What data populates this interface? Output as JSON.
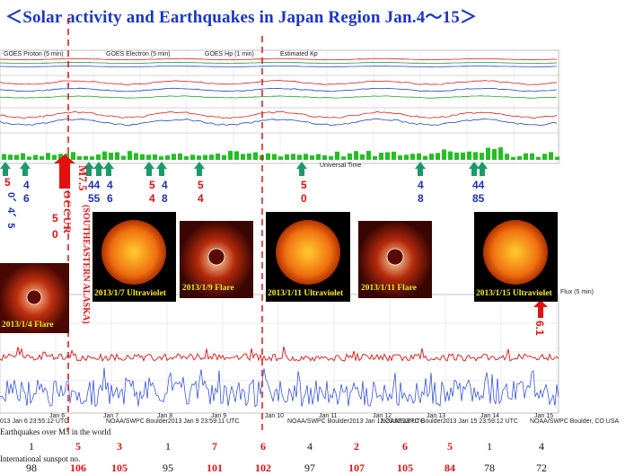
{
  "title": "＜Solar activity and Earthquakes  in Japan Region Jan.4～15＞",
  "colors": {
    "title": "#1a35c8",
    "green_arrow": "#1a9a6a",
    "red": "#e41010",
    "blue_num": "#2030c0"
  },
  "top_panel_labels": [
    "GOES Proton (5 min)",
    "GOES Electron (5 min)",
    "GOES Hp (1 min)",
    "Estimated Kp",
    "Universal Time"
  ],
  "big_event": {
    "magnitude": "M7.5",
    "place": "(SOUTHEASTERN ALASKA)",
    "note": "OCCUR"
  },
  "earthquake_markers": [
    {
      "mag": "5",
      "extra": "0、4、5"
    },
    {
      "mag": "4",
      "extra": "6"
    },
    {
      "mag": "5",
      "extra": "0"
    },
    {
      "mag": "44",
      "extra": "55"
    },
    {
      "mag": "4",
      "extra": "6"
    },
    {
      "mag": "5",
      "extra": "4"
    },
    {
      "mag": "4",
      "extra": "8"
    },
    {
      "mag": "5",
      "extra": "4"
    },
    {
      "mag": "5",
      "extra": "0"
    },
    {
      "mag": "4",
      "extra": "8"
    },
    {
      "mag": "44",
      "extra": "85"
    }
  ],
  "images": [
    {
      "caption": "2013/1/4 Flare",
      "kind": "flare"
    },
    {
      "caption": "2013/1/7 Ultraviolet",
      "kind": "sun"
    },
    {
      "caption": "2013/1/9 Flare",
      "kind": "flare"
    },
    {
      "caption": "2013/1/11 Ultraviolet",
      "kind": "sun"
    },
    {
      "caption": "2013/1/11 Flare",
      "kind": "flare"
    },
    {
      "caption": "2013/1/15 Ultraviolet",
      "kind": "sun"
    }
  ],
  "red_arrow_right": "6.1",
  "bottom_panel": {
    "flux_label": "Flux (5 min)",
    "axis_days": [
      "Jan 6",
      "Jan 7",
      "Jan 8",
      "Jan 9",
      "Jan 10",
      "Jan 11",
      "Jan 12",
      "Jan 13",
      "Jan 14",
      "Jan 15"
    ],
    "footer": [
      "013 Jan 6 23:55:12 UTC",
      "NOAA/SWPC Boulder2013 Jan 9 23:59:11 UTC",
      "NOAA/SWPC Boulder2013 Jan 12 23:55:12 UTC",
      "NOAA/SWPC Boulder2013 Jan 15 23:59:12 UTC",
      "NOAA/SWPC Boulder, CO USA"
    ]
  },
  "chart_data": {
    "type": "table",
    "rows": [
      {
        "label": "Earthquakes over M5 in the world",
        "values": [
          "1",
          "5",
          "3",
          "1",
          "7",
          "6",
          "4",
          "2",
          "6",
          "5",
          "1",
          "4"
        ]
      },
      {
        "label": "International sunspot no.",
        "values": [
          "98",
          "106",
          "105",
          "95",
          "101",
          "102",
          "97",
          "107",
          "105",
          "84",
          "78",
          "72"
        ]
      }
    ],
    "highlight_columns": [
      1,
      2,
      4,
      5,
      7,
      8,
      9
    ]
  }
}
